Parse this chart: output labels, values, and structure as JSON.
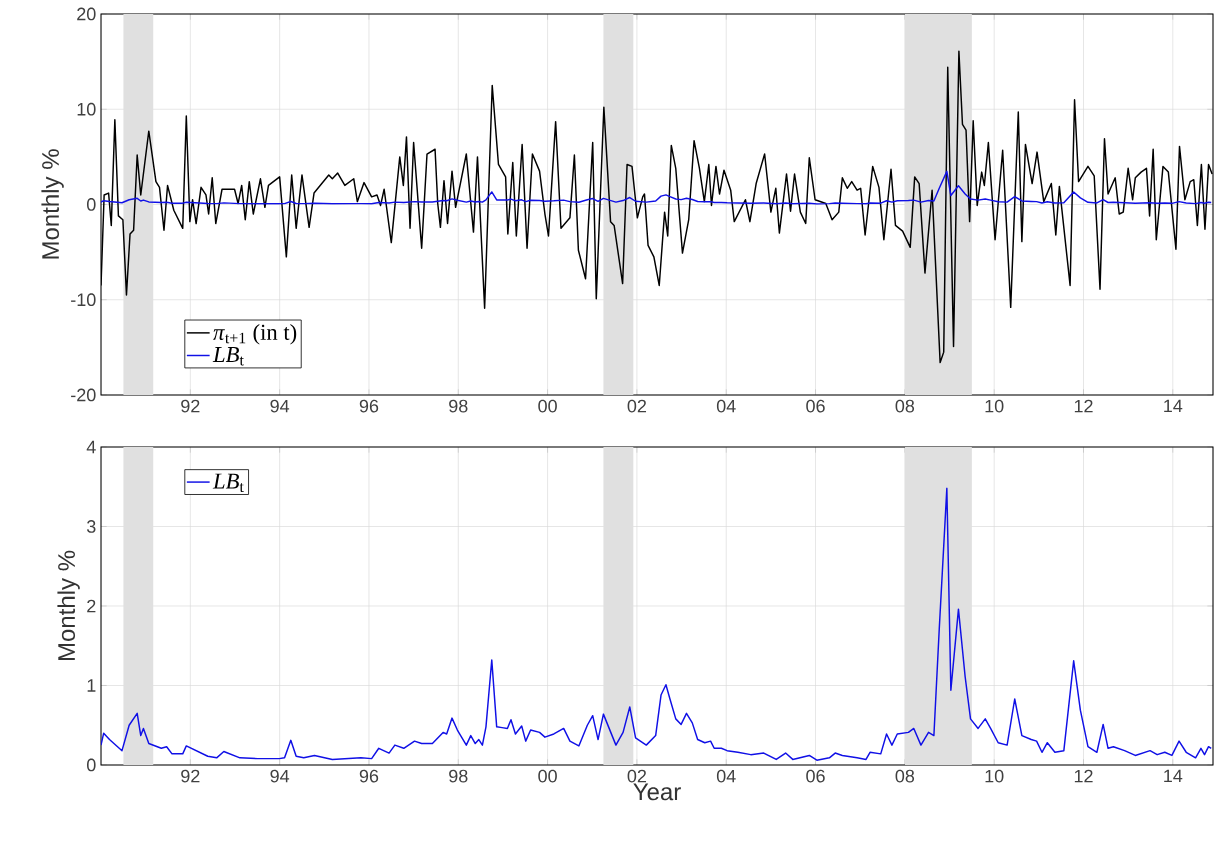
{
  "chart_data": [
    {
      "type": "line",
      "ylabel": "Monthly %",
      "xlim": [
        1990,
        2014.9
      ],
      "ylim": [
        -20,
        20
      ],
      "xticks": [
        {
          "value": 1992,
          "label": "92"
        },
        {
          "value": 1994,
          "label": "94"
        },
        {
          "value": 1996,
          "label": "96"
        },
        {
          "value": 1998,
          "label": "98"
        },
        {
          "value": 2000,
          "label": "00"
        },
        {
          "value": 2002,
          "label": "02"
        },
        {
          "value": 2004,
          "label": "04"
        },
        {
          "value": 2006,
          "label": "06"
        },
        {
          "value": 2008,
          "label": "08"
        },
        {
          "value": 2010,
          "label": "10"
        },
        {
          "value": 2012,
          "label": "12"
        },
        {
          "value": 2014,
          "label": "14"
        }
      ],
      "yticks": [
        -20,
        -10,
        0,
        10,
        20
      ],
      "grid": true,
      "legend": "bottom left",
      "bands": [
        {
          "axis": "x",
          "from": 1990.5,
          "to": 1991.17,
          "color": "#e0e0e0"
        },
        {
          "axis": "x",
          "from": 2001.25,
          "to": 2001.92,
          "color": "#e0e0e0"
        },
        {
          "axis": "x",
          "from": 2008.0,
          "to": 2009.5,
          "color": "#e0e0e0"
        }
      ],
      "series": [
        {
          "name": "*π*$_{t+1}$ (in t)",
          "color": "#000000",
          "x": [
            1990.0,
            1990.07,
            1990.17,
            1990.23,
            1990.31,
            1990.39,
            1990.49,
            1990.57,
            1990.65,
            1990.73,
            1990.81,
            1990.89,
            1991.07,
            1991.23,
            1991.31,
            1991.41,
            1991.49,
            1991.63,
            1991.83,
            1991.91,
            1991.99,
            1992.05,
            1992.13,
            1992.24,
            1992.35,
            1992.41,
            1992.49,
            1992.57,
            1992.71,
            1992.99,
            1993.07,
            1993.15,
            1993.23,
            1993.32,
            1993.41,
            1993.57,
            1993.67,
            1993.75,
            1994.0,
            1994.15,
            1994.27,
            1994.37,
            1994.5,
            1994.66,
            1994.77,
            1995.1,
            1995.18,
            1995.3,
            1995.46,
            1995.66,
            1995.74,
            1995.89,
            1996.06,
            1996.18,
            1996.26,
            1996.34,
            1996.5,
            1996.69,
            1996.77,
            1996.84,
            1996.92,
            1997.0,
            1997.18,
            1997.3,
            1997.48,
            1997.54,
            1997.6,
            1997.68,
            1997.76,
            1997.86,
            1997.94,
            1998.18,
            1998.34,
            1998.43,
            1998.59,
            1998.76,
            1998.9,
            1999.06,
            1999.11,
            1999.22,
            1999.3,
            1999.43,
            1999.54,
            1999.66,
            1999.82,
            1999.94,
            2000.02,
            2000.18,
            2000.3,
            2000.5,
            2000.6,
            2000.69,
            2000.85,
            2001.01,
            2001.09,
            2001.26,
            2001.41,
            2001.49,
            2001.68,
            2001.78,
            2001.89,
            2002.01,
            2002.13,
            2002.17,
            2002.25,
            2002.38,
            2002.5,
            2002.62,
            2002.69,
            2002.77,
            2002.87,
            2003.02,
            2003.16,
            2003.28,
            2003.4,
            2003.51,
            2003.61,
            2003.67,
            2003.77,
            2003.85,
            2003.95,
            2004.1,
            2004.18,
            2004.43,
            2004.53,
            2004.67,
            2004.86,
            2005.0,
            2005.11,
            2005.19,
            2005.35,
            2005.44,
            2005.53,
            2005.66,
            2005.78,
            2005.86,
            2005.99,
            2006.23,
            2006.37,
            2006.52,
            2006.6,
            2006.71,
            2006.81,
            2006.93,
            2007.01,
            2007.11,
            2007.28,
            2007.42,
            2007.53,
            2007.69,
            2007.79,
            2007.95,
            2008.12,
            2008.22,
            2008.32,
            2008.45,
            2008.61,
            2008.79,
            2008.87,
            2008.96,
            2009.09,
            2009.21,
            2009.29,
            2009.37,
            2009.45,
            2009.53,
            2009.62,
            2009.72,
            2009.78,
            2009.87,
            2010.02,
            2010.19,
            2010.37,
            2010.54,
            2010.62,
            2010.7,
            2010.85,
            2010.96,
            2011.11,
            2011.28,
            2011.38,
            2011.46,
            2011.7,
            2011.8,
            2011.89,
            2012.1,
            2012.24,
            2012.37,
            2012.47,
            2012.55,
            2012.71,
            2012.8,
            2012.89,
            2013.0,
            2013.1,
            2013.16,
            2013.29,
            2013.41,
            2013.48,
            2013.56,
            2013.63,
            2013.78,
            2013.9,
            2014.07,
            2014.15,
            2014.27,
            2014.39,
            2014.47,
            2014.55,
            2014.64,
            2014.72,
            2014.8,
            2014.88
          ],
          "values": [
            -8.5,
            1.0,
            1.2,
            -2.2,
            8.9,
            -1.2,
            -1.6,
            -9.5,
            -3.1,
            -2.7,
            5.2,
            1.0,
            7.7,
            2.4,
            1.8,
            -2.7,
            2.0,
            -0.6,
            -2.5,
            9.3,
            -1.8,
            0.5,
            -2.0,
            1.8,
            1.0,
            -1.0,
            2.8,
            -2.0,
            1.6,
            1.6,
            0.1,
            2.0,
            -1.6,
            2.4,
            -1.0,
            2.7,
            -0.3,
            2.0,
            2.9,
            -5.5,
            3.1,
            -2.5,
            3.1,
            -2.4,
            1.2,
            3.1,
            2.7,
            3.3,
            2.0,
            2.7,
            0.3,
            2.3,
            0.8,
            1.0,
            -0.1,
            1.6,
            -4.0,
            5.0,
            2.0,
            7.1,
            -2.5,
            6.5,
            -4.6,
            5.3,
            5.8,
            0.1,
            -2.4,
            2.5,
            -2.0,
            3.5,
            -0.3,
            5.3,
            -2.9,
            5.0,
            -10.9,
            12.5,
            4.2,
            2.9,
            -3.1,
            4.4,
            -3.3,
            6.3,
            -4.6,
            5.3,
            3.5,
            -1.0,
            -3.3,
            8.7,
            -2.5,
            -1.4,
            5.2,
            -4.8,
            -7.8,
            6.5,
            -9.9,
            10.2,
            -1.8,
            -2.2,
            -8.3,
            4.2,
            4.0,
            -1.4,
            0.8,
            1.1,
            -4.3,
            -5.5,
            -8.5,
            -0.8,
            -3.3,
            6.2,
            3.8,
            -5.1,
            -1.6,
            6.7,
            3.8,
            0.3,
            4.2,
            -0.1,
            4.0,
            1.1,
            3.6,
            1.5,
            -1.8,
            0.5,
            -1.8,
            2.2,
            5.3,
            -0.8,
            1.7,
            -3.0,
            3.2,
            -0.7,
            3.2,
            -0.8,
            -2.0,
            4.9,
            0.5,
            0.1,
            -1.6,
            -0.8,
            2.8,
            1.7,
            2.4,
            1.5,
            1.7,
            -3.2,
            4.0,
            1.8,
            -3.7,
            3.7,
            -2.2,
            -2.8,
            -4.5,
            2.9,
            2.2,
            -7.2,
            1.5,
            -16.6,
            -15.5,
            14.4,
            -14.9,
            16.1,
            8.4,
            7.8,
            -1.8,
            8.8,
            -0.1,
            3.4,
            2.0,
            6.5,
            -3.7,
            5.7,
            -10.8,
            9.7,
            -3.9,
            6.3,
            2.2,
            5.5,
            0.3,
            2.2,
            -3.2,
            1.9,
            -8.5,
            11.0,
            2.4,
            4.0,
            3.0,
            -8.9,
            6.9,
            1.1,
            2.8,
            -1.0,
            -0.8,
            3.8,
            0.5,
            2.8,
            3.4,
            3.8,
            -1.2,
            5.8,
            -3.7,
            4.0,
            3.4,
            -4.7,
            6.1,
            0.5,
            2.4,
            2.6,
            -2.2,
            4.2,
            -2.6,
            4.2,
            3.2
          ]
        },
        {
          "name": "*LB*$_{t}$",
          "color": "#1010e6",
          "x": [
            1990.0,
            1990.06,
            1990.19,
            1990.47,
            1990.63,
            1990.81,
            1990.89,
            1990.95,
            1991.07,
            1991.35,
            1991.47,
            1991.59,
            1991.83,
            1991.91,
            1992.39,
            1992.59,
            1992.75,
            1993.11,
            1993.51,
            1993.99,
            1994.11,
            1994.25,
            1994.37,
            1994.54,
            1994.78,
            1995.18,
            1995.82,
            1996.06,
            1996.22,
            1996.45,
            1996.58,
            1996.78,
            1997.02,
            1997.18,
            1997.42,
            1997.66,
            1997.74,
            1997.86,
            1997.98,
            1998.18,
            1998.28,
            1998.38,
            1998.46,
            1998.54,
            1998.62,
            1998.75,
            1998.86,
            1998.98,
            1999.1,
            1999.18,
            1999.28,
            1999.42,
            1999.51,
            1999.62,
            1999.82,
            1999.94,
            2000.14,
            2000.36,
            2000.5,
            2000.7,
            2000.89,
            2001.01,
            2001.13,
            2001.25,
            2001.53,
            2001.69,
            2001.84,
            2001.97,
            2002.21,
            2002.42,
            2002.54,
            2002.65,
            2002.74,
            2002.87,
            2002.99,
            2003.11,
            2003.24,
            2003.36,
            2003.52,
            2003.65,
            2003.73,
            2003.89,
            2004.02,
            2004.26,
            2004.55,
            2004.84,
            2005.12,
            2005.33,
            2005.49,
            2005.86,
            2006.03,
            2006.31,
            2006.44,
            2006.6,
            2006.93,
            2007.13,
            2007.22,
            2007.46,
            2007.59,
            2007.71,
            2007.83,
            2008.08,
            2008.2,
            2008.36,
            2008.53,
            2008.65,
            2008.77,
            2008.94,
            2009.03,
            2009.2,
            2009.35,
            2009.47,
            2009.64,
            2009.8,
            2009.92,
            2010.09,
            2010.29,
            2010.46,
            2010.62,
            2010.83,
            2010.95,
            2011.07,
            2011.19,
            2011.36,
            2011.56,
            2011.78,
            2011.93,
            2012.1,
            2012.3,
            2012.44,
            2012.55,
            2012.67,
            2012.92,
            2013.16,
            2013.49,
            2013.65,
            2013.82,
            2013.98,
            2014.14,
            2014.3,
            2014.51,
            2014.63,
            2014.71,
            2014.8,
            2014.86
          ],
          "values": [
            0.25,
            0.4,
            0.32,
            0.18,
            0.5,
            0.65,
            0.37,
            0.46,
            0.27,
            0.21,
            0.23,
            0.14,
            0.14,
            0.24,
            0.11,
            0.09,
            0.17,
            0.09,
            0.08,
            0.08,
            0.09,
            0.31,
            0.11,
            0.09,
            0.12,
            0.07,
            0.09,
            0.08,
            0.21,
            0.15,
            0.25,
            0.21,
            0.3,
            0.27,
            0.27,
            0.41,
            0.39,
            0.59,
            0.44,
            0.25,
            0.37,
            0.27,
            0.32,
            0.25,
            0.48,
            1.32,
            0.48,
            0.47,
            0.46,
            0.57,
            0.39,
            0.49,
            0.3,
            0.44,
            0.41,
            0.35,
            0.39,
            0.46,
            0.3,
            0.24,
            0.5,
            0.62,
            0.32,
            0.64,
            0.25,
            0.41,
            0.73,
            0.34,
            0.25,
            0.37,
            0.88,
            1.01,
            0.83,
            0.58,
            0.51,
            0.65,
            0.53,
            0.32,
            0.28,
            0.3,
            0.21,
            0.21,
            0.18,
            0.16,
            0.13,
            0.15,
            0.07,
            0.15,
            0.07,
            0.12,
            0.06,
            0.09,
            0.15,
            0.12,
            0.09,
            0.07,
            0.16,
            0.14,
            0.39,
            0.25,
            0.39,
            0.41,
            0.46,
            0.25,
            0.41,
            0.37,
            1.71,
            3.48,
            0.94,
            1.96,
            1.11,
            0.58,
            0.46,
            0.58,
            0.46,
            0.28,
            0.25,
            0.83,
            0.37,
            0.32,
            0.3,
            0.16,
            0.28,
            0.16,
            0.18,
            1.31,
            0.69,
            0.23,
            0.16,
            0.51,
            0.21,
            0.23,
            0.18,
            0.12,
            0.18,
            0.13,
            0.16,
            0.12,
            0.3,
            0.16,
            0.09,
            0.21,
            0.13,
            0.23,
            0.21
          ]
        }
      ]
    },
    {
      "type": "line",
      "ylabel": "Monthly %",
      "xlabel": "Year",
      "xlim": [
        1990,
        2014.9
      ],
      "ylim": [
        0,
        4
      ],
      "xticks": [
        {
          "value": 1992,
          "label": "92"
        },
        {
          "value": 1994,
          "label": "94"
        },
        {
          "value": 1996,
          "label": "96"
        },
        {
          "value": 1998,
          "label": "98"
        },
        {
          "value": 2000,
          "label": "00"
        },
        {
          "value": 2002,
          "label": "02"
        },
        {
          "value": 2004,
          "label": "04"
        },
        {
          "value": 2006,
          "label": "06"
        },
        {
          "value": 2008,
          "label": "08"
        },
        {
          "value": 2010,
          "label": "10"
        },
        {
          "value": 2012,
          "label": "12"
        },
        {
          "value": 2014,
          "label": "14"
        }
      ],
      "yticks": [
        0,
        1,
        2,
        3,
        4
      ],
      "grid": true,
      "legend": "top left",
      "bands": [
        {
          "axis": "x",
          "from": 1990.5,
          "to": 1991.17,
          "color": "#e0e0e0"
        },
        {
          "axis": "x",
          "from": 2001.25,
          "to": 2001.92,
          "color": "#e0e0e0"
        },
        {
          "axis": "x",
          "from": 2008.0,
          "to": 2009.5,
          "color": "#e0e0e0"
        }
      ],
      "series": [
        {
          "name": "*LB*$_{t}$",
          "color": "#1010e6",
          "x": [
            1990.0,
            1990.06,
            1990.19,
            1990.47,
            1990.63,
            1990.81,
            1990.89,
            1990.95,
            1991.07,
            1991.35,
            1991.47,
            1991.59,
            1991.83,
            1991.91,
            1992.39,
            1992.59,
            1992.75,
            1993.11,
            1993.51,
            1993.99,
            1994.11,
            1994.25,
            1994.37,
            1994.54,
            1994.78,
            1995.18,
            1995.82,
            1996.06,
            1996.22,
            1996.45,
            1996.58,
            1996.78,
            1997.02,
            1997.18,
            1997.42,
            1997.66,
            1997.74,
            1997.86,
            1997.98,
            1998.18,
            1998.28,
            1998.38,
            1998.46,
            1998.54,
            1998.62,
            1998.75,
            1998.86,
            1998.98,
            1999.1,
            1999.18,
            1999.28,
            1999.42,
            1999.51,
            1999.62,
            1999.82,
            1999.94,
            2000.14,
            2000.36,
            2000.5,
            2000.7,
            2000.89,
            2001.01,
            2001.13,
            2001.25,
            2001.53,
            2001.69,
            2001.84,
            2001.97,
            2002.21,
            2002.42,
            2002.54,
            2002.65,
            2002.74,
            2002.87,
            2002.99,
            2003.11,
            2003.24,
            2003.36,
            2003.52,
            2003.65,
            2003.73,
            2003.89,
            2004.02,
            2004.26,
            2004.55,
            2004.84,
            2005.12,
            2005.33,
            2005.49,
            2005.86,
            2006.03,
            2006.31,
            2006.44,
            2006.6,
            2006.93,
            2007.13,
            2007.22,
            2007.46,
            2007.59,
            2007.71,
            2007.83,
            2008.08,
            2008.2,
            2008.36,
            2008.53,
            2008.65,
            2008.77,
            2008.94,
            2009.03,
            2009.2,
            2009.35,
            2009.47,
            2009.64,
            2009.8,
            2009.92,
            2010.09,
            2010.29,
            2010.46,
            2010.62,
            2010.83,
            2010.95,
            2011.07,
            2011.19,
            2011.36,
            2011.56,
            2011.78,
            2011.93,
            2012.1,
            2012.3,
            2012.44,
            2012.55,
            2012.67,
            2012.92,
            2013.16,
            2013.49,
            2013.65,
            2013.82,
            2013.98,
            2014.14,
            2014.3,
            2014.51,
            2014.63,
            2014.71,
            2014.8,
            2014.86
          ],
          "values": [
            0.25,
            0.4,
            0.32,
            0.18,
            0.5,
            0.65,
            0.37,
            0.46,
            0.27,
            0.21,
            0.23,
            0.14,
            0.14,
            0.24,
            0.11,
            0.09,
            0.17,
            0.09,
            0.08,
            0.08,
            0.09,
            0.31,
            0.11,
            0.09,
            0.12,
            0.07,
            0.09,
            0.08,
            0.21,
            0.15,
            0.25,
            0.21,
            0.3,
            0.27,
            0.27,
            0.41,
            0.39,
            0.59,
            0.44,
            0.25,
            0.37,
            0.27,
            0.32,
            0.25,
            0.48,
            1.32,
            0.48,
            0.47,
            0.46,
            0.57,
            0.39,
            0.49,
            0.3,
            0.44,
            0.41,
            0.35,
            0.39,
            0.46,
            0.3,
            0.24,
            0.5,
            0.62,
            0.32,
            0.64,
            0.25,
            0.41,
            0.73,
            0.34,
            0.25,
            0.37,
            0.88,
            1.01,
            0.83,
            0.58,
            0.51,
            0.65,
            0.53,
            0.32,
            0.28,
            0.3,
            0.21,
            0.21,
            0.18,
            0.16,
            0.13,
            0.15,
            0.07,
            0.15,
            0.07,
            0.12,
            0.06,
            0.09,
            0.15,
            0.12,
            0.09,
            0.07,
            0.16,
            0.14,
            0.39,
            0.25,
            0.39,
            0.41,
            0.46,
            0.25,
            0.41,
            0.37,
            1.71,
            3.48,
            0.94,
            1.96,
            1.11,
            0.58,
            0.46,
            0.58,
            0.46,
            0.28,
            0.25,
            0.83,
            0.37,
            0.32,
            0.3,
            0.16,
            0.28,
            0.16,
            0.18,
            1.31,
            0.69,
            0.23,
            0.16,
            0.51,
            0.21,
            0.23,
            0.18,
            0.12,
            0.18,
            0.13,
            0.16,
            0.12,
            0.3,
            0.16,
            0.09,
            0.21,
            0.13,
            0.23,
            0.21
          ]
        }
      ]
    }
  ]
}
